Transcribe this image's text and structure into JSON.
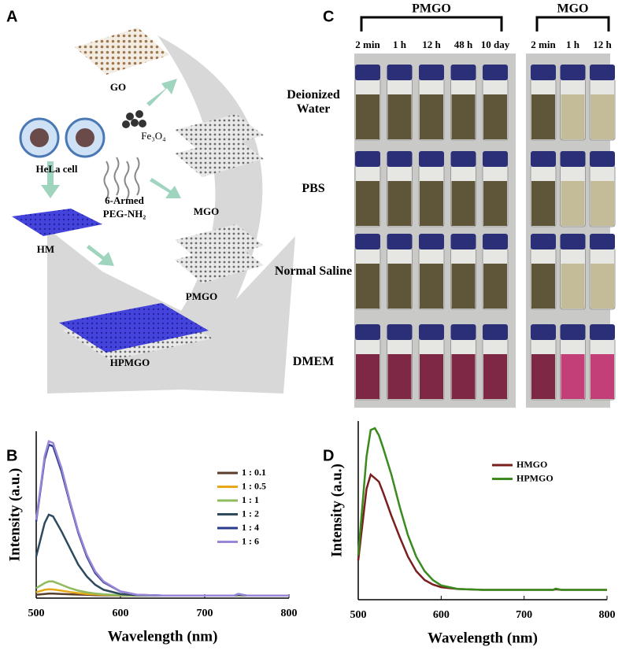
{
  "schematic": {
    "panel_label": "A",
    "labels": {
      "go": "GO",
      "fe3o4": "Fe₃O₄",
      "mgo": "MGO",
      "hela": "HeLa cell",
      "peg1": "6-Armed",
      "peg2": "PEG-NH₂",
      "hm": "HM",
      "pmgo": "PMGO",
      "hpmgo": "HPMGO"
    }
  },
  "vials": {
    "panel_label": "C",
    "groups": [
      {
        "name": "PMGO",
        "times": [
          "2 min",
          "1 h",
          "12 h",
          "48 h",
          "10 day"
        ]
      },
      {
        "name": "MGO",
        "times": [
          "2 min",
          "1 h",
          "12 h"
        ]
      }
    ],
    "media": [
      "Deionized Water",
      "PBS",
      "Normal Saline",
      "DMEM"
    ]
  },
  "chart_data": [
    {
      "type": "line",
      "panel_label": "B",
      "xlabel": "Wavelength (nm)",
      "ylabel": "Intensity (a.u.)",
      "x": [
        500,
        510,
        515,
        520,
        530,
        540,
        550,
        560,
        570,
        580,
        600,
        620,
        650,
        700,
        735,
        740,
        750,
        800
      ],
      "xlim": [
        500,
        800
      ],
      "xticks": [
        500,
        600,
        700,
        800
      ],
      "ylim": [
        0,
        100
      ],
      "legend": "upper right",
      "series": [
        {
          "name": "1 : 0.1",
          "color": "#5a3d2b",
          "values": [
            2,
            2.5,
            2.7,
            2.7,
            2.5,
            2.3,
            2.1,
            2,
            1.8,
            1.7,
            1.6,
            1.5,
            1.5,
            1.5,
            1.5,
            1.7,
            1.5,
            1.5
          ]
        },
        {
          "name": "1 : 0.5",
          "color": "#e6a817",
          "values": [
            3.5,
            5,
            5.3,
            5.2,
            4.5,
            3.7,
            3,
            2.5,
            2.2,
            2,
            1.7,
            1.5,
            1.5,
            1.5,
            1.5,
            1.8,
            1.5,
            1.5
          ]
        },
        {
          "name": "1 : 1",
          "color": "#8dbb5e",
          "values": [
            6,
            9,
            10,
            10,
            8,
            6,
            4.5,
            3.5,
            2.8,
            2.3,
            1.8,
            1.5,
            1.5,
            1.5,
            1.5,
            1.8,
            1.5,
            1.5
          ]
        },
        {
          "name": "1 : 2",
          "color": "#2d4a5e",
          "values": [
            25,
            45,
            50,
            49,
            40,
            30,
            20,
            13,
            8,
            5,
            2.5,
            1.8,
            1.5,
            1.5,
            1.5,
            2,
            1.5,
            1.5
          ]
        },
        {
          "name": "1 : 4",
          "color": "#2a3a8c",
          "values": [
            46,
            83,
            92,
            91,
            76,
            57,
            39,
            25,
            15,
            9.5,
            4,
            2,
            1.5,
            1.5,
            1.5,
            2.5,
            1.5,
            1.5
          ]
        },
        {
          "name": "1 : 6",
          "color": "#9a86d8",
          "values": [
            47,
            85,
            94,
            93,
            78,
            58,
            40,
            26,
            16,
            10,
            4,
            2,
            1.5,
            1.5,
            1.5,
            2.5,
            1.5,
            1.5
          ]
        }
      ]
    },
    {
      "type": "line",
      "panel_label": "D",
      "xlabel": "Wavelength (nm)",
      "ylabel": "Intensity (a.u.)",
      "x": [
        500,
        510,
        515,
        520,
        525,
        530,
        540,
        550,
        560,
        570,
        580,
        590,
        600,
        620,
        650,
        700,
        735,
        738,
        745,
        800
      ],
      "xlim": [
        500,
        800
      ],
      "xticks": [
        500,
        600,
        700,
        800
      ],
      "ylim": [
        0,
        100
      ],
      "legend": "upper right",
      "series": [
        {
          "name": "HMGO",
          "color": "#7a1e1e",
          "values": [
            22,
            62,
            70,
            68,
            66,
            60,
            47,
            35,
            24,
            16,
            11,
            8.5,
            7,
            6,
            5.5,
            5.5,
            5.5,
            5.8,
            5.5,
            5.5
          ]
        },
        {
          "name": "HPMGO",
          "color": "#3a8a1e",
          "values": [
            25,
            80,
            95,
            96,
            92,
            85,
            70,
            52,
            36,
            24,
            16,
            11,
            8,
            6,
            5.5,
            5.5,
            5.5,
            6.2,
            5.5,
            5.5
          ]
        }
      ]
    }
  ]
}
